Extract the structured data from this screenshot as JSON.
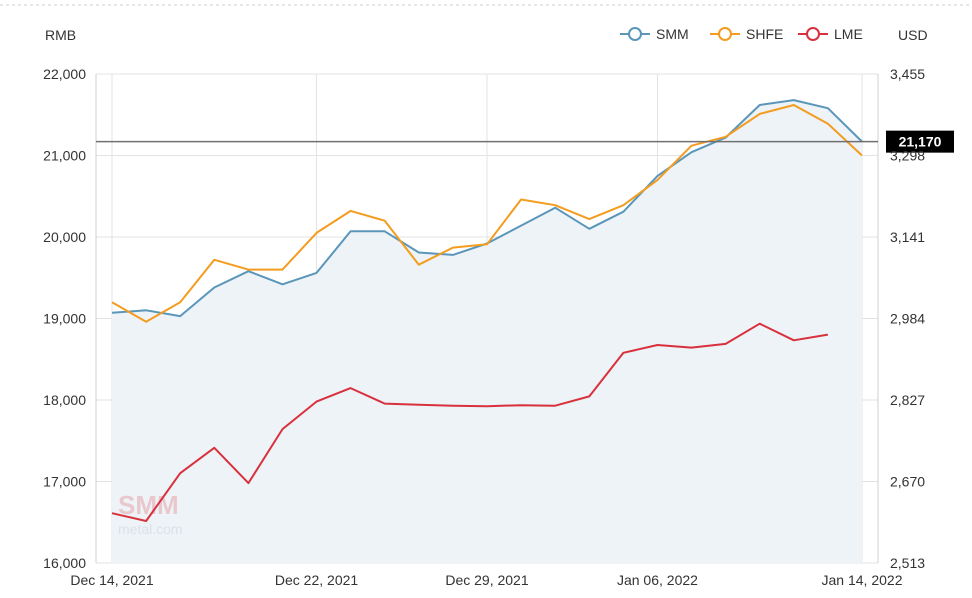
{
  "colors": {
    "smm": "#5a96ba",
    "shfe": "#f39c1f",
    "lme": "#d9303d",
    "area_fill": "#edf3f7",
    "grid": "#e3e3e3",
    "axis_text": "#333333",
    "ref_line": "#707070",
    "ref_label_bg": "#000000",
    "ref_label_text": "#ffffff"
  },
  "chart_data": {
    "type": "line",
    "left_axis_unit": "RMB",
    "right_axis_unit": "USD",
    "x_tick_labels": [
      "Dec 14, 2021",
      "Dec 22, 2021",
      "Dec 29, 2021",
      "Jan 06, 2022",
      "Jan 14, 2022"
    ],
    "x_tick_index": [
      0,
      6,
      11,
      16,
      22
    ],
    "y_left_ticks": [
      "22,000",
      "21,000",
      "20,000",
      "19,000",
      "18,000",
      "17,000",
      "16,000"
    ],
    "y_left_values": [
      22000,
      21000,
      20000,
      19000,
      18000,
      17000,
      16000
    ],
    "y_right_ticks": [
      "3,455",
      "3,298",
      "3,141",
      "2,984",
      "2,827",
      "2,670",
      "2,513"
    ],
    "ylim_left": [
      16000,
      22000
    ],
    "ylim_right": [
      2513,
      3455
    ],
    "legend_position": "top-right",
    "reference_line": {
      "value": 21170,
      "label": "21,170"
    },
    "series": [
      {
        "name": "SMM",
        "axis": "left",
        "area": true,
        "values": [
          19070,
          19100,
          19030,
          19380,
          19580,
          19420,
          19560,
          20070,
          20070,
          19810,
          19780,
          19920,
          20140,
          20360,
          20100,
          20310,
          20750,
          21040,
          21220,
          21620,
          21680,
          21580,
          21170
        ]
      },
      {
        "name": "SHFE",
        "axis": "left",
        "area": false,
        "values": [
          19200,
          18960,
          19200,
          19720,
          19600,
          19600,
          20050,
          20320,
          20200,
          19660,
          19870,
          19910,
          20460,
          20390,
          20220,
          20390,
          20700,
          21120,
          21230,
          21510,
          21620,
          21390,
          21000
        ]
      },
      {
        "name": "LME",
        "axis": "right",
        "area": false,
        "values": [
          2609,
          2594,
          2686,
          2735,
          2667,
          2771,
          2824,
          2850,
          2820,
          2818,
          2816,
          2815,
          2817,
          2816,
          2834,
          2918,
          2933,
          2928,
          2935,
          2974,
          2942,
          2953
        ]
      }
    ]
  }
}
